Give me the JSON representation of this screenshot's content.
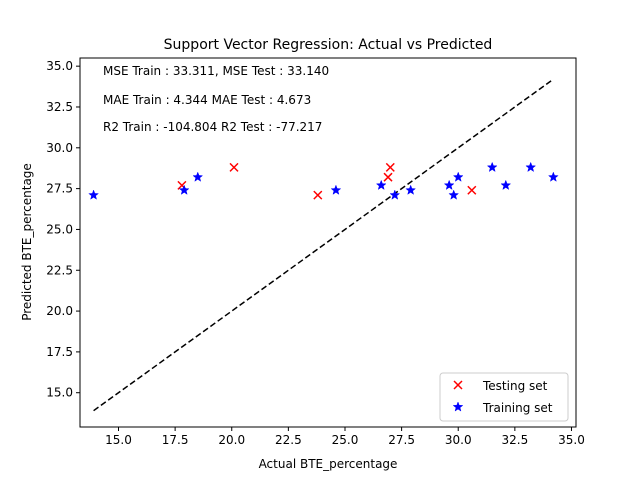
{
  "chart_data": {
    "type": "scatter",
    "title": "Support Vector Regression: Actual vs Predicted",
    "xlabel": "Actual BTE_percentage",
    "ylabel": "Predicted BTE_percentage",
    "xlim": [
      13.3,
      35.2
    ],
    "ylim": [
      12.9,
      35.5
    ],
    "x_ticks": [
      15.0,
      17.5,
      20.0,
      22.5,
      25.0,
      27.5,
      30.0,
      32.5,
      35.0
    ],
    "y_ticks": [
      15.0,
      17.5,
      20.0,
      22.5,
      25.0,
      27.5,
      30.0,
      32.5,
      35.0
    ],
    "grid": false,
    "legend_position": "lower right",
    "annotations": [
      "MSE Train : 33.311, MSE Test  : 33.140",
      "MAE Train  : 4.344 MAE Test  : 4.673",
      "R2 Train  : -104.804 R2 Test  : -77.217"
    ],
    "reference_line": {
      "x": [
        13.9,
        34.1
      ],
      "y": [
        13.9,
        34.1
      ],
      "style": "dashed",
      "color": "#000000"
    },
    "series": [
      {
        "name": "Testing set",
        "marker": "x",
        "color": "#ff0000",
        "x": [
          17.8,
          20.1,
          23.8,
          26.9,
          27.0,
          30.6
        ],
        "y": [
          27.7,
          28.8,
          27.1,
          28.2,
          28.8,
          27.4
        ]
      },
      {
        "name": "Training set",
        "marker": "star",
        "color": "#0000ff",
        "x": [
          13.9,
          17.9,
          18.5,
          24.6,
          26.6,
          27.2,
          27.9,
          29.6,
          29.8,
          30.0,
          31.5,
          32.1,
          33.2,
          34.2
        ],
        "y": [
          27.1,
          27.4,
          28.2,
          27.4,
          27.7,
          27.1,
          27.4,
          27.7,
          27.1,
          28.2,
          28.8,
          27.7,
          28.8,
          28.2
        ]
      }
    ]
  }
}
